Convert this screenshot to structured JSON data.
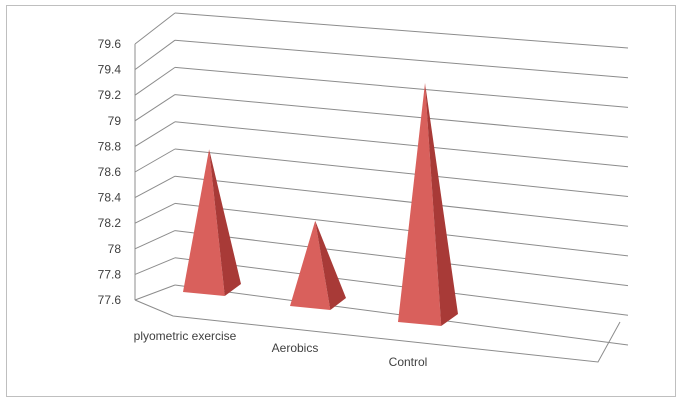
{
  "chart_data": {
    "type": "bar",
    "style": "3d-pyramid",
    "categories": [
      "plyometric exercise",
      "Aerobics",
      "Control"
    ],
    "values": [
      78.75,
      78.23,
      79.35
    ],
    "yticks": [
      "77.6",
      "77.8",
      "78",
      "78.2",
      "78.4",
      "78.6",
      "78.8",
      "79",
      "79.2",
      "79.4",
      "79.6"
    ],
    "ylim": [
      77.6,
      79.6
    ],
    "grid": true,
    "legend": "none",
    "colors": {
      "pyramid_front": "#d9605c",
      "pyramid_side": "#a83a37",
      "grid": "#8c8c8c"
    }
  }
}
